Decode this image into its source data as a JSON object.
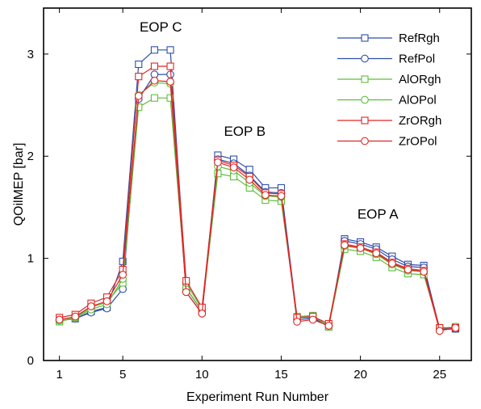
{
  "chart_data": {
    "type": "line",
    "title": "",
    "xlabel": "Experiment Run Number",
    "ylabel": "QOilMEP [bar]",
    "xlim": [
      0,
      27
    ],
    "ylim": [
      0,
      3.45
    ],
    "xticks": [
      1,
      5,
      10,
      15,
      20,
      25
    ],
    "yticks": [
      0,
      1,
      2,
      3
    ],
    "grid": false,
    "legend_position": "top-right",
    "x": [
      1,
      2,
      3,
      4,
      5,
      6,
      7,
      8,
      9,
      10,
      11,
      12,
      13,
      14,
      15,
      16,
      17,
      18,
      19,
      20,
      21,
      22,
      23,
      24,
      25,
      26
    ],
    "series": [
      {
        "name": "RefRgh",
        "color": "#2f4fa8",
        "marker": "square",
        "values": [
          0.39,
          0.41,
          0.48,
          0.52,
          0.97,
          2.9,
          3.04,
          3.04,
          0.71,
          0.48,
          2.01,
          1.97,
          1.87,
          1.69,
          1.69,
          0.42,
          0.42,
          0.33,
          1.19,
          1.16,
          1.11,
          1.02,
          0.94,
          0.93,
          0.31,
          0.31
        ]
      },
      {
        "name": "RefPol",
        "color": "#2f4fa8",
        "marker": "circle",
        "values": [
          0.39,
          0.41,
          0.47,
          0.51,
          0.7,
          2.56,
          2.8,
          2.8,
          0.67,
          0.46,
          1.97,
          1.93,
          1.81,
          1.65,
          1.64,
          0.4,
          0.41,
          0.34,
          1.17,
          1.14,
          1.09,
          0.99,
          0.92,
          0.91,
          0.3,
          0.31
        ]
      },
      {
        "name": "AlORgh",
        "color": "#5cbf3a",
        "marker": "square",
        "values": [
          0.38,
          0.42,
          0.52,
          0.57,
          0.76,
          2.48,
          2.57,
          2.57,
          0.71,
          0.48,
          1.83,
          1.8,
          1.69,
          1.57,
          1.56,
          0.43,
          0.44,
          0.33,
          1.09,
          1.07,
          1.01,
          0.91,
          0.85,
          0.84,
          0.31,
          0.33
        ]
      },
      {
        "name": "AlOPol",
        "color": "#5cbf3a",
        "marker": "circle",
        "values": [
          0.39,
          0.42,
          0.5,
          0.55,
          0.8,
          2.6,
          2.72,
          2.71,
          0.76,
          0.5,
          1.9,
          1.86,
          1.74,
          1.61,
          1.6,
          0.42,
          0.43,
          0.34,
          1.12,
          1.1,
          1.04,
          0.94,
          0.88,
          0.87,
          0.31,
          0.33
        ]
      },
      {
        "name": "ZrORgh",
        "color": "#e02626",
        "marker": "square",
        "values": [
          0.42,
          0.45,
          0.56,
          0.62,
          0.89,
          2.78,
          2.88,
          2.88,
          0.78,
          0.52,
          1.96,
          1.91,
          1.8,
          1.64,
          1.63,
          0.42,
          0.43,
          0.36,
          1.14,
          1.11,
          1.06,
          0.96,
          0.9,
          0.88,
          0.32,
          0.32
        ]
      },
      {
        "name": "ZrOPol",
        "color": "#e02626",
        "marker": "circle",
        "values": [
          0.4,
          0.43,
          0.53,
          0.58,
          0.84,
          2.59,
          2.74,
          2.73,
          0.67,
          0.46,
          1.94,
          1.89,
          1.77,
          1.62,
          1.61,
          0.38,
          0.4,
          0.34,
          1.13,
          1.1,
          1.05,
          0.95,
          0.89,
          0.87,
          0.29,
          0.32
        ]
      }
    ],
    "annotations": [
      {
        "text": "EOP C",
        "x": 7.4,
        "y": 3.22
      },
      {
        "text": "EOP B",
        "x": 12.7,
        "y": 2.2
      },
      {
        "text": "EOP A",
        "x": 21.1,
        "y": 1.39
      }
    ]
  }
}
